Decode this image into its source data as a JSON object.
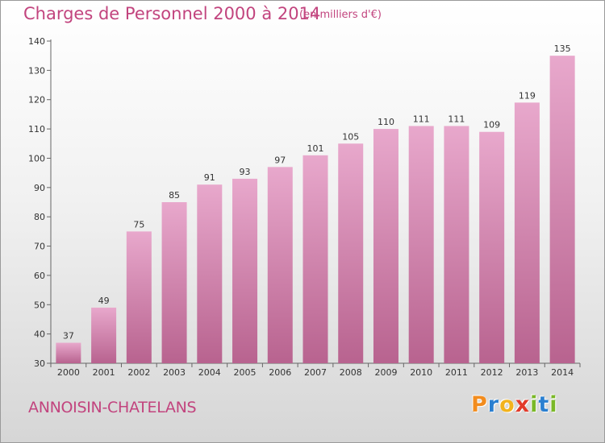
{
  "header": {
    "title": "Charges de Personnel 2000 à 2014",
    "unit": "(en milliers d'€)"
  },
  "footer": {
    "commune": "ANNOISIN-CHATELANS",
    "logo_letters": [
      "P",
      "r",
      "o",
      "x",
      "i",
      "t",
      "i"
    ],
    "logo_colors": [
      "#f28c1e",
      "#2a7fd0",
      "#f2b31e",
      "#e23a2a",
      "#7ab828",
      "#2a7fd0",
      "#7ab828"
    ]
  },
  "colors": {
    "bar_top": "#e8a8cc",
    "bar_bottom": "#b8638f",
    "accent": "#c2447e"
  },
  "chart_data": {
    "type": "bar",
    "title": "Charges de Personnel 2000 à 2014",
    "subtitle": "(en milliers d'€)",
    "categories": [
      "2000",
      "2001",
      "2002",
      "2003",
      "2004",
      "2005",
      "2006",
      "2007",
      "2008",
      "2009",
      "2010",
      "2011",
      "2012",
      "2013",
      "2014"
    ],
    "values": [
      37,
      49,
      75,
      85,
      91,
      93,
      97,
      101,
      105,
      110,
      111,
      111,
      109,
      119,
      135
    ],
    "ylim": [
      30,
      140
    ],
    "yticks": [
      30,
      40,
      50,
      60,
      70,
      80,
      90,
      100,
      110,
      120,
      130,
      140
    ],
    "grid": false,
    "legend": "none"
  }
}
